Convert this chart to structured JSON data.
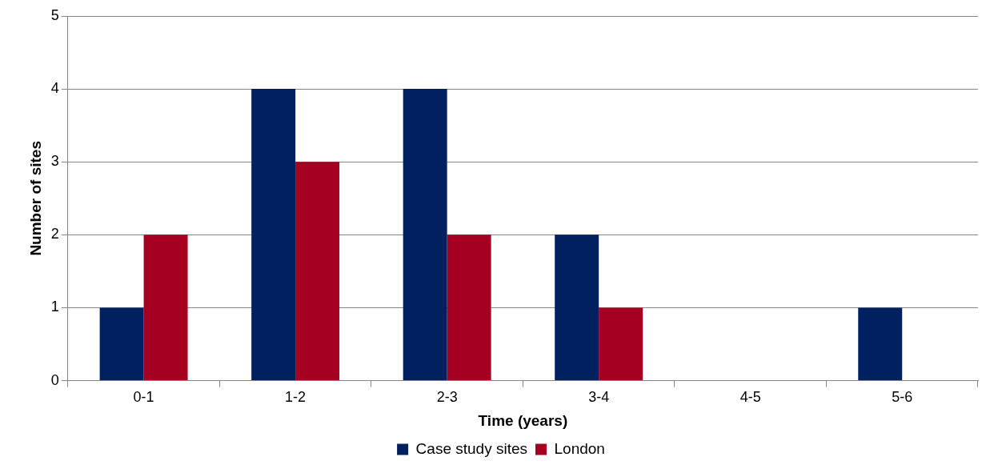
{
  "chart_data": {
    "type": "bar",
    "xlabel": "Time (years)",
    "ylabel": "Number of sites",
    "categories": [
      "0-1",
      "1-2",
      "2-3",
      "3-4",
      "4-5",
      "5-6"
    ],
    "series": [
      {
        "name": "Case study sites",
        "color": "#002060",
        "values": [
          1,
          4,
          4,
          2,
          0,
          1
        ]
      },
      {
        "name": "London",
        "color": "#a50021",
        "values": [
          2,
          3,
          2,
          1,
          0,
          0
        ]
      }
    ],
    "ylim": [
      0,
      5
    ],
    "yticks": [
      0,
      1,
      2,
      3,
      4,
      5
    ],
    "grid": "y",
    "legend": "bottom"
  }
}
